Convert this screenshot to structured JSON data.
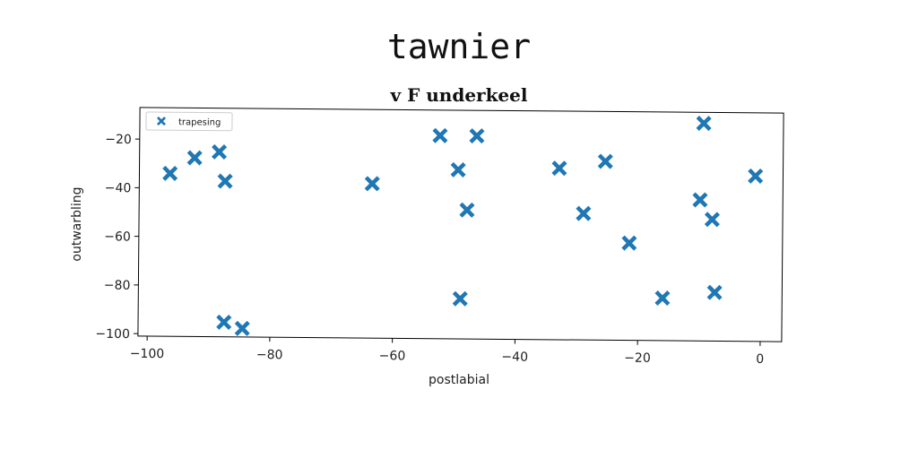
{
  "figure": {
    "suptitle": "tawnier",
    "title": "v F underkeel"
  },
  "colors": {
    "series": "#1f77b4",
    "axes": "#000000",
    "background": "#ffffff"
  },
  "chart_data": {
    "type": "scatter",
    "title": "v F underkeel",
    "xlabel": "postlabial",
    "ylabel": "outwarbling",
    "xlim": [
      -101.5,
      3.5
    ],
    "ylim": [
      -101,
      -7
    ],
    "xticks": [
      -100,
      -80,
      -60,
      -40,
      -20,
      0
    ],
    "yticks": [
      -100,
      -80,
      -60,
      -40,
      -20
    ],
    "grid": false,
    "legend_position": "top-left",
    "marker": "X",
    "series": [
      {
        "name": "trapesing",
        "points": [
          {
            "x": -96.5,
            "y": -34
          },
          {
            "x": -92.5,
            "y": -27.5
          },
          {
            "x": -88.5,
            "y": -25
          },
          {
            "x": -87.5,
            "y": -37
          },
          {
            "x": -87.5,
            "y": -95
          },
          {
            "x": -84.5,
            "y": -97.5
          },
          {
            "x": -63.5,
            "y": -37.5
          },
          {
            "x": -52.5,
            "y": -17.5
          },
          {
            "x": -49.5,
            "y": -31.5
          },
          {
            "x": -49,
            "y": -84.5
          },
          {
            "x": -48,
            "y": -48
          },
          {
            "x": -46.5,
            "y": -17.5
          },
          {
            "x": -33,
            "y": -30.5
          },
          {
            "x": -29,
            "y": -49
          },
          {
            "x": -25.5,
            "y": -27.5
          },
          {
            "x": -21.5,
            "y": -61
          },
          {
            "x": -16,
            "y": -83.5
          },
          {
            "x": -10,
            "y": -43
          },
          {
            "x": -9.5,
            "y": -11.5
          },
          {
            "x": -8,
            "y": -51
          },
          {
            "x": -7.5,
            "y": -81
          },
          {
            "x": -1,
            "y": -33
          }
        ]
      }
    ]
  }
}
